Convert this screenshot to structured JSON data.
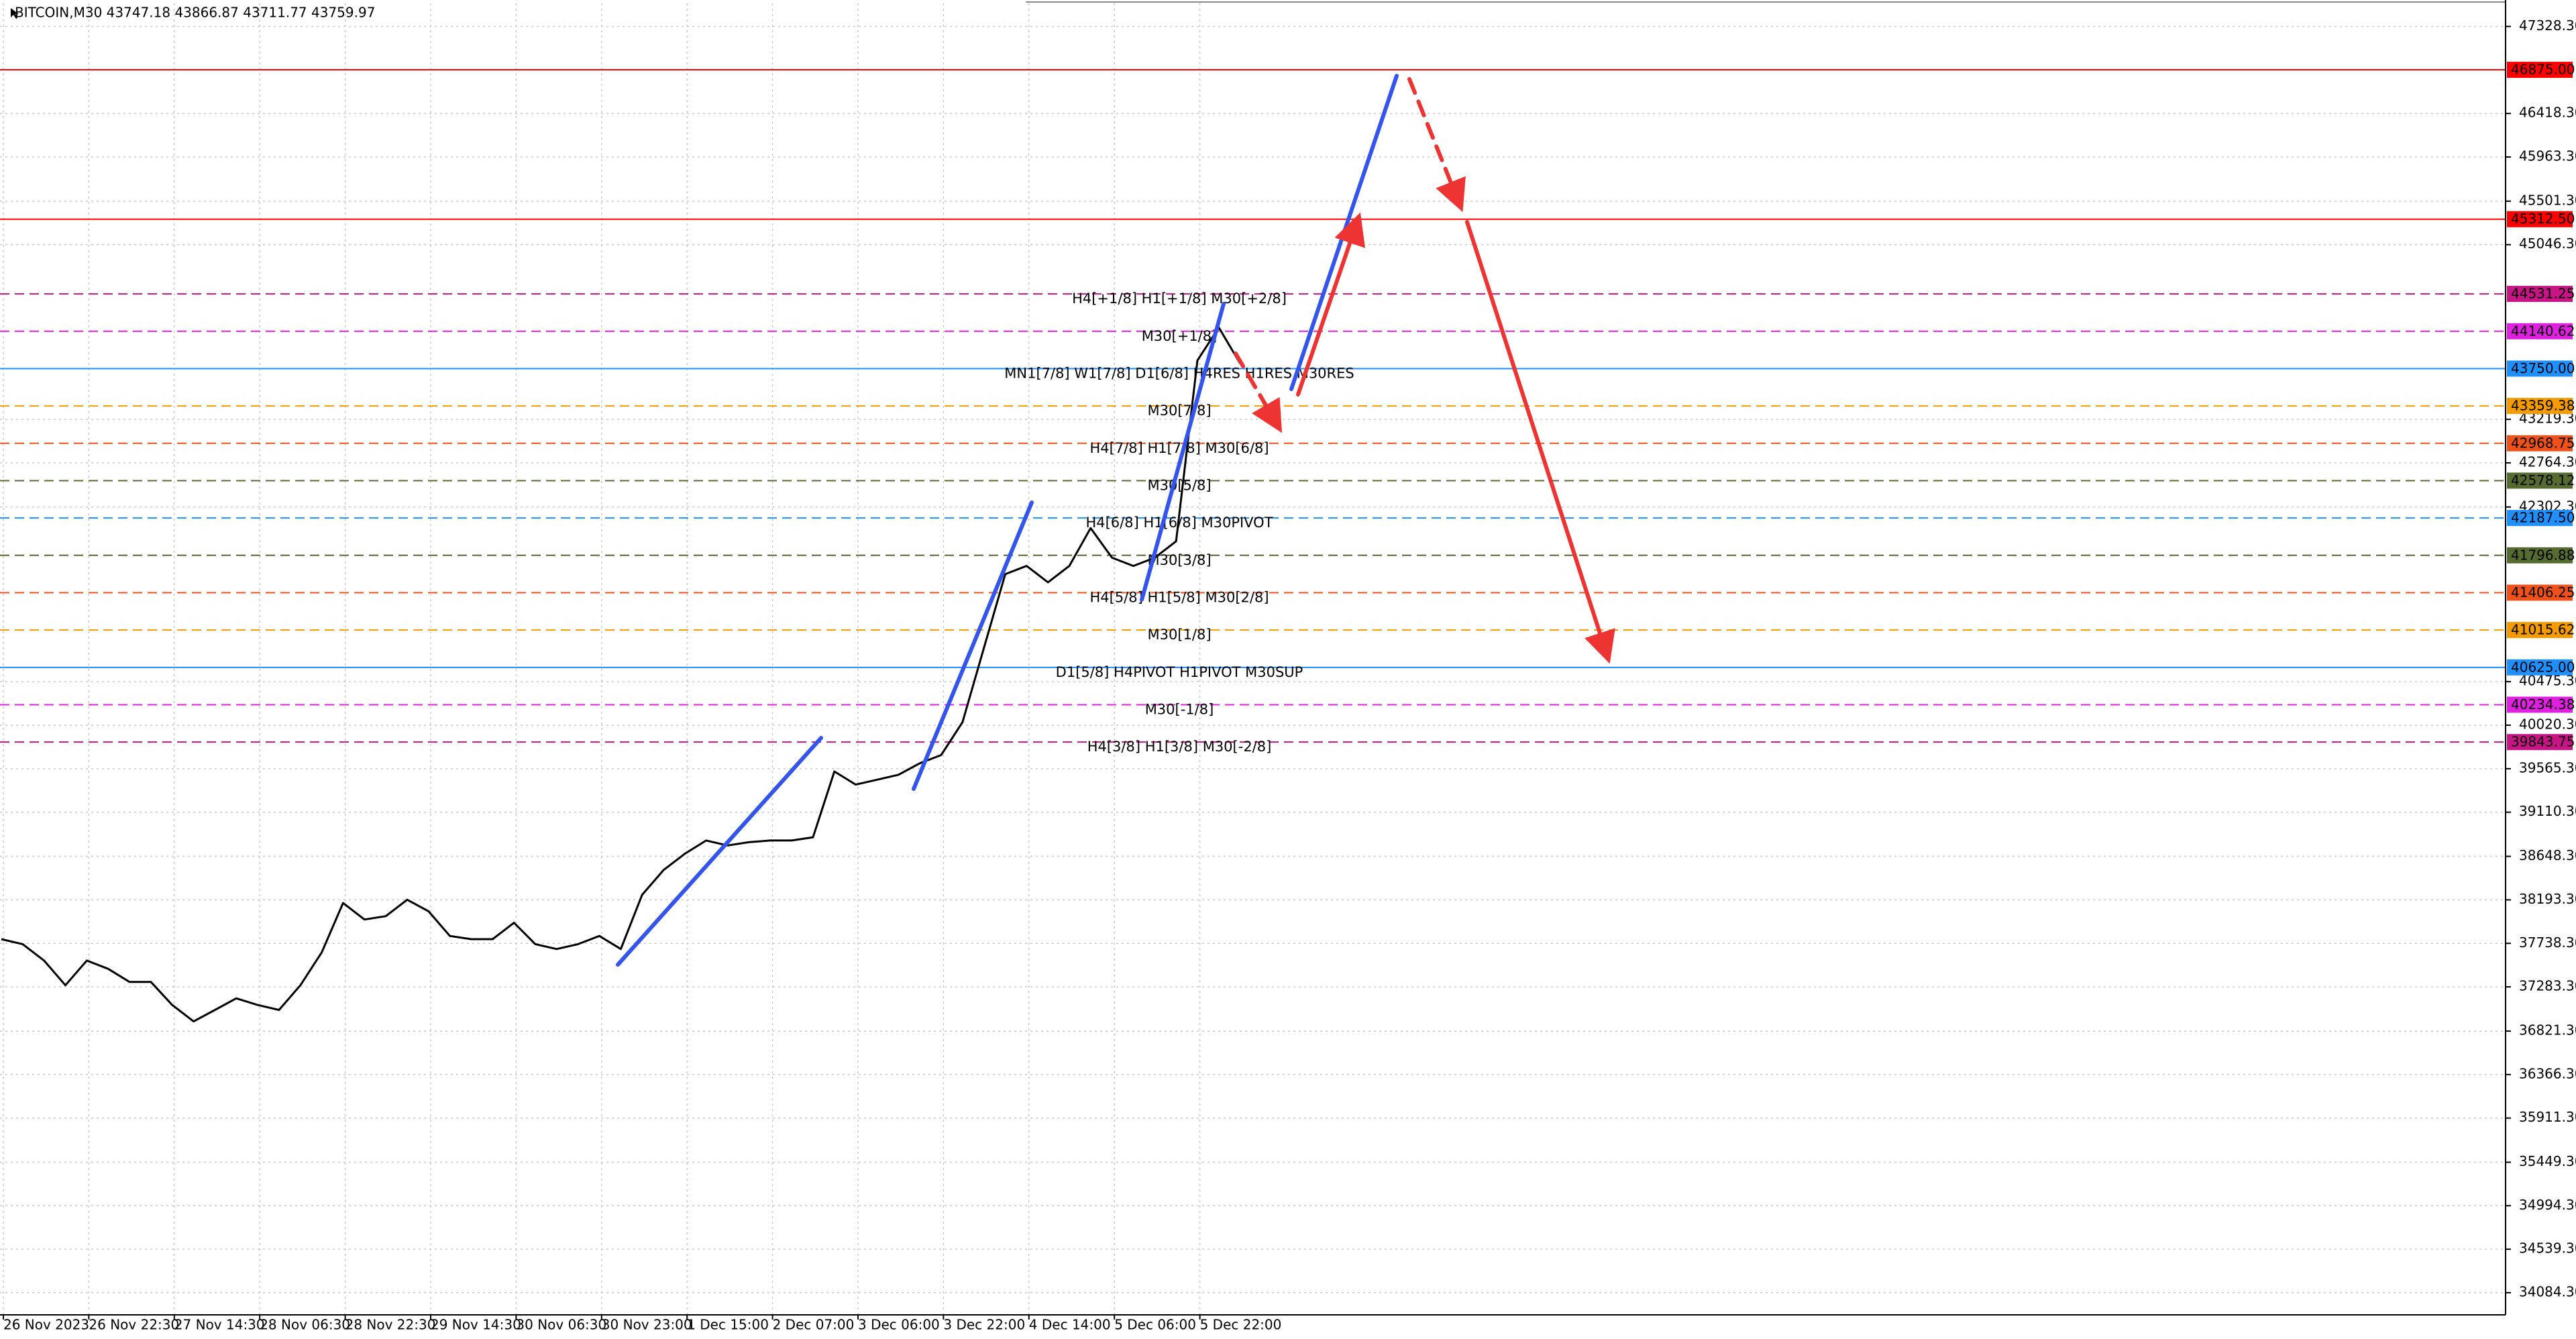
{
  "chart_data": {
    "type": "line",
    "title": "BITCOIN,M30  43747.18 43866.87 43711.77 43759.97",
    "x_labels": [
      "26 Nov 2023",
      "26 Nov 22:30",
      "27 Nov 14:30",
      "28 Nov 06:30",
      "28 Nov 22:30",
      "29 Nov 14:30",
      "30 Nov 06:30",
      "30 Nov 23:00",
      "1 Dec 15:00",
      "2 Dec 07:00",
      "3 Dec 06:00",
      "3 Dec 22:00",
      "4 Dec 14:00",
      "5 Dec 06:00",
      "5 Dec 22:00"
    ],
    "series": [
      {
        "color": "#000000",
        "values": [
          37782,
          37730,
          37558,
          37300,
          37558,
          37472,
          37335,
          37335,
          37094,
          36922,
          37042,
          37163,
          37094,
          37042,
          37300,
          37644,
          38160,
          37988,
          38023,
          38195,
          38074,
          37816,
          37782,
          37782,
          37954,
          37730,
          37679,
          37730,
          37816,
          37679,
          38246,
          38504,
          38676,
          38814,
          38762,
          38797,
          38814,
          38814,
          38848,
          39536,
          39399,
          39450,
          39502,
          39622,
          39708,
          40052,
          40826,
          41600,
          41686,
          41514,
          41686,
          42082,
          41772,
          41686,
          41772,
          41944,
          43836,
          44180,
          43802
        ]
      }
    ],
    "ylim": [
      33860,
      47570
    ],
    "yticks": [
      {
        "value": 47328.3,
        "label": "47328.30"
      },
      {
        "value": 46418.3,
        "label": "46418.30"
      },
      {
        "value": 45963.3,
        "label": "45963.30"
      },
      {
        "value": 45501.3,
        "label": "45501.30"
      },
      {
        "value": 45046.3,
        "label": "45046.30"
      },
      {
        "value": 43219.3,
        "label": "43219.30"
      },
      {
        "value": 42764.3,
        "label": "42764.30"
      },
      {
        "value": 42302.3,
        "label": "42302.30"
      },
      {
        "value": 40475.3,
        "label": "40475.30"
      },
      {
        "value": 40020.3,
        "label": "40020.30"
      },
      {
        "value": 39565.3,
        "label": "39565.30"
      },
      {
        "value": 39110.3,
        "label": "39110.30"
      },
      {
        "value": 38648.3,
        "label": "38648.30"
      },
      {
        "value": 38193.3,
        "label": "38193.30"
      },
      {
        "value": 37738.3,
        "label": "37738.30"
      },
      {
        "value": 37283.3,
        "label": "37283.30"
      },
      {
        "value": 36821.3,
        "label": "36821.30"
      },
      {
        "value": 36366.3,
        "label": "36366.30"
      },
      {
        "value": 35911.3,
        "label": "35911.30"
      },
      {
        "value": 35449.3,
        "label": "35449.30"
      },
      {
        "value": 34994.3,
        "label": "34994.30"
      },
      {
        "value": 34539.3,
        "label": "34539.30"
      },
      {
        "value": 34084.3,
        "label": "34084.30"
      }
    ],
    "grid": true,
    "levels": [
      {
        "value": 46875,
        "label": "46875.00",
        "color": "#ff0000",
        "dashed": false
      },
      {
        "value": 45312.5,
        "label": "45312.50",
        "color": "#ff0000",
        "dashed": false
      },
      {
        "value": 44531.25,
        "label": "44531.25",
        "color": "#c71585",
        "dashed": true,
        "text": "H4[+1/8] H1[+1/8] M30[+2/8]"
      },
      {
        "value": 44140.62,
        "label": "44140.62",
        "color": "#e020e0",
        "dashed": true,
        "text": "M30[+1/8]"
      },
      {
        "value": 43750,
        "label": "43750.00",
        "color": "#1e90ff",
        "dashed": false,
        "text": "MN1[7/8] W1[7/8] D1[6/8] H4RES H1RES M30RES"
      },
      {
        "value": 43359.38,
        "label": "43359.38",
        "color": "#f59a00",
        "dashed": true,
        "text": "M30[7/8]"
      },
      {
        "value": 42968.75,
        "label": "42968.75",
        "color": "#f0501a",
        "dashed": true,
        "text": "H4[7/8] H1[7/8] M30[6/8]"
      },
      {
        "value": 42578.12,
        "label": "42578.12",
        "color": "#556b2f",
        "dashed": true,
        "text": "M30[5/8]"
      },
      {
        "value": 42187.5,
        "label": "42187.50",
        "color": "#1e90ff",
        "dashed": true,
        "text": "H4[6/8] H1[6/8] M30PIVOT"
      },
      {
        "value": 41796.88,
        "label": "41796.88",
        "color": "#556b2f",
        "dashed": true,
        "text": "M30[3/8]"
      },
      {
        "value": 41406.25,
        "label": "41406.25",
        "color": "#f0501a",
        "dashed": true,
        "text": "H4[5/8] H1[5/8] M30[2/8]"
      },
      {
        "value": 41015.62,
        "label": "41015.62",
        "color": "#f59a00",
        "dashed": true,
        "text": "M30[1/8]"
      },
      {
        "value": 40625,
        "label": "40625.00",
        "color": "#1e90ff",
        "dashed": false,
        "text": "D1[5/8] H4PIVOT H1PIVOT M30SUP"
      },
      {
        "value": 40234.38,
        "label": "40234.38",
        "color": "#e020e0",
        "dashed": true,
        "text": "M30[-1/8]"
      },
      {
        "value": 39843.75,
        "label": "39843.75",
        "color": "#c71585",
        "dashed": true,
        "text": "H4[3/8] H1[3/8] M30[-2/8]"
      }
    ]
  }
}
